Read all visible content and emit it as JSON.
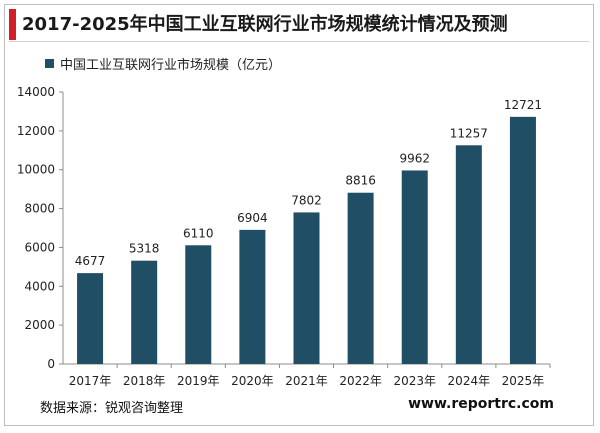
{
  "header": {
    "title": "2017-2025年中国工业互联网行业市场规模统计情况及预测"
  },
  "legend": {
    "label": "中国工业互联网行业市场规模（亿元）",
    "color": "#1f4e65"
  },
  "footer": {
    "source": "数据来源：锐观咨询整理",
    "site": "www.reportrc.com"
  },
  "colors": {
    "accent": "#d2202a",
    "bar": "#1f4e65"
  },
  "chart_data": {
    "type": "bar",
    "title": "2017-2025年中国工业互联网行业市场规模统计情况及预测",
    "xlabel": "",
    "ylabel": "",
    "categories": [
      "2017年",
      "2018年",
      "2019年",
      "2020年",
      "2021年",
      "2022年",
      "2023年",
      "2024年",
      "2025年"
    ],
    "series": [
      {
        "name": "中国工业互联网行业市场规模（亿元）",
        "values": [
          4677,
          5318,
          6110,
          6904,
          7802,
          8816,
          9962,
          11257,
          12721
        ]
      }
    ],
    "ylim": [
      0,
      14000
    ],
    "yticks": [
      0,
      2000,
      4000,
      6000,
      8000,
      10000,
      12000,
      14000
    ],
    "grid": false,
    "legend_position": "top-left",
    "data_labels": true
  }
}
